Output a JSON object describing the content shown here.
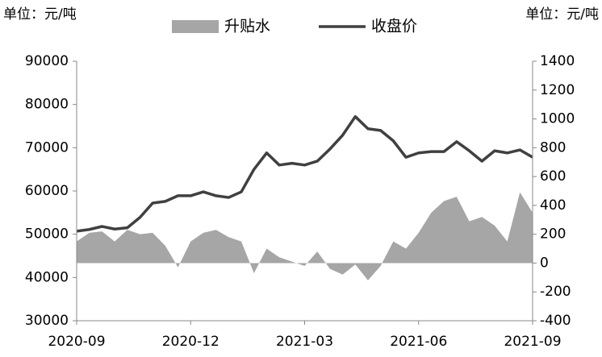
{
  "chart_data": {
    "type": "line",
    "y_unit_label": "单位：元/吨",
    "y2_unit_label": "单位：元/吨",
    "categories": [
      "2020-09",
      null,
      null,
      null,
      null,
      null,
      null,
      null,
      null,
      "2020-12",
      null,
      null,
      null,
      null,
      null,
      null,
      null,
      null,
      "2021-03",
      null,
      null,
      null,
      null,
      null,
      null,
      null,
      null,
      "2021-06",
      null,
      null,
      null,
      null,
      null,
      null,
      null,
      null,
      "2021-09"
    ],
    "series": [
      {
        "name": "升贴水",
        "type": "area",
        "axis": "y2",
        "color": "#a6a6a6",
        "values": [
          150,
          210,
          220,
          150,
          230,
          200,
          210,
          120,
          -30,
          150,
          210,
          230,
          180,
          150,
          -70,
          100,
          40,
          10,
          -20,
          80,
          -40,
          -80,
          -10,
          -120,
          -20,
          150,
          100,
          210,
          350,
          430,
          460,
          290,
          320,
          260,
          150,
          490,
          350
        ]
      },
      {
        "name": "收盘价",
        "type": "line",
        "color": "#404040",
        "values": [
          50700,
          51100,
          51800,
          51200,
          51500,
          53900,
          57200,
          57600,
          58900,
          58900,
          59800,
          58900,
          58500,
          59800,
          65000,
          68800,
          66000,
          66400,
          66000,
          66900,
          69700,
          72900,
          77200,
          74400,
          74000,
          71600,
          67800,
          68800,
          69100,
          69100,
          71400,
          69300,
          66900,
          69300,
          68800,
          69500,
          67800
        ]
      }
    ],
    "ylim": [
      30000,
      90000
    ],
    "yticks": [
      30000,
      40000,
      50000,
      60000,
      70000,
      80000,
      90000
    ],
    "y2lim": [
      -400,
      1400
    ],
    "y2ticks": [
      -400,
      -200,
      0,
      200,
      400,
      600,
      800,
      1000,
      1200,
      1400
    ],
    "legend": "top"
  }
}
